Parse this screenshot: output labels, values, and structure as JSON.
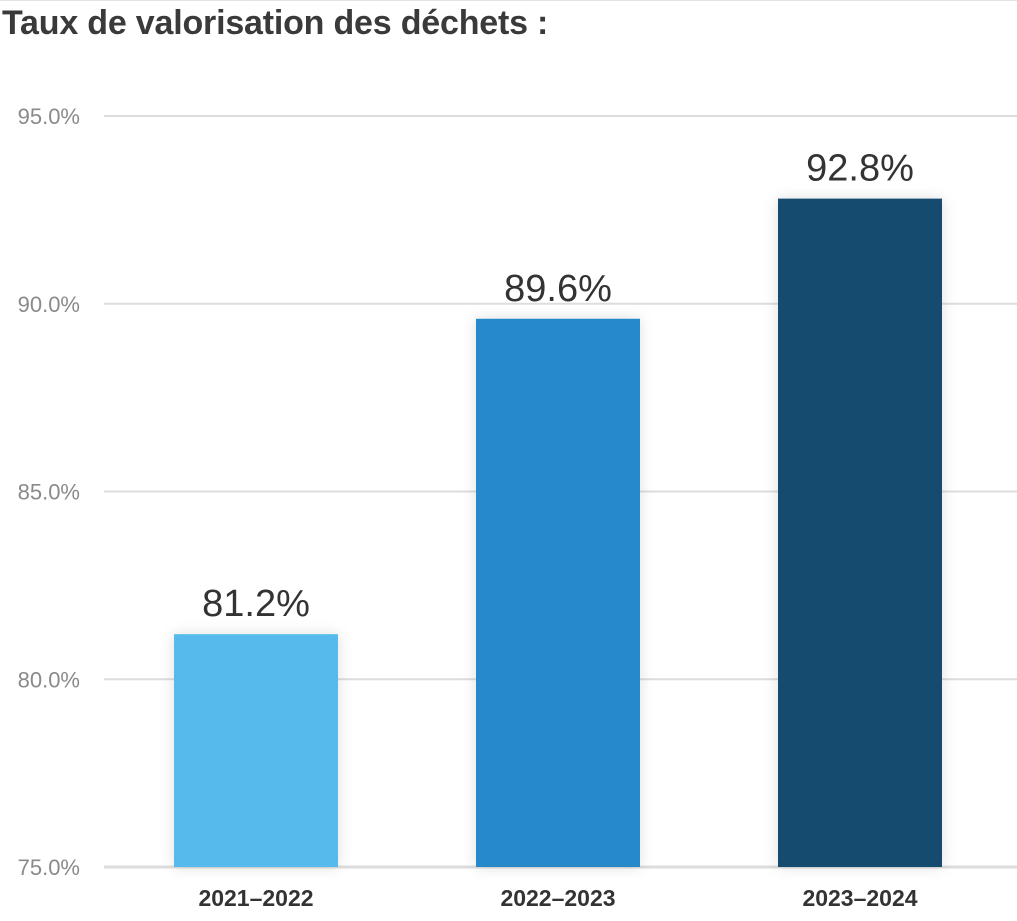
{
  "chart_data": {
    "type": "bar",
    "title": "Taux de valorisation des déchets :",
    "categories": [
      "2021–2022",
      "2022–2023",
      "2023–2024"
    ],
    "values": [
      81.2,
      89.6,
      92.8
    ],
    "value_labels": [
      "81.2%",
      "89.6%",
      "92.8%"
    ],
    "colors": [
      "#56bbec",
      "#258aca",
      "#164b6f"
    ],
    "y_ticks": [
      75.0,
      80.0,
      85.0,
      90.0,
      95.0
    ],
    "y_tick_labels": [
      "75.0%",
      "80.0%",
      "85.0%",
      "90.0%",
      "95.0%"
    ],
    "ylim": [
      75,
      95
    ],
    "grid": true,
    "grid_color": "#dddddd",
    "legend": "none"
  }
}
